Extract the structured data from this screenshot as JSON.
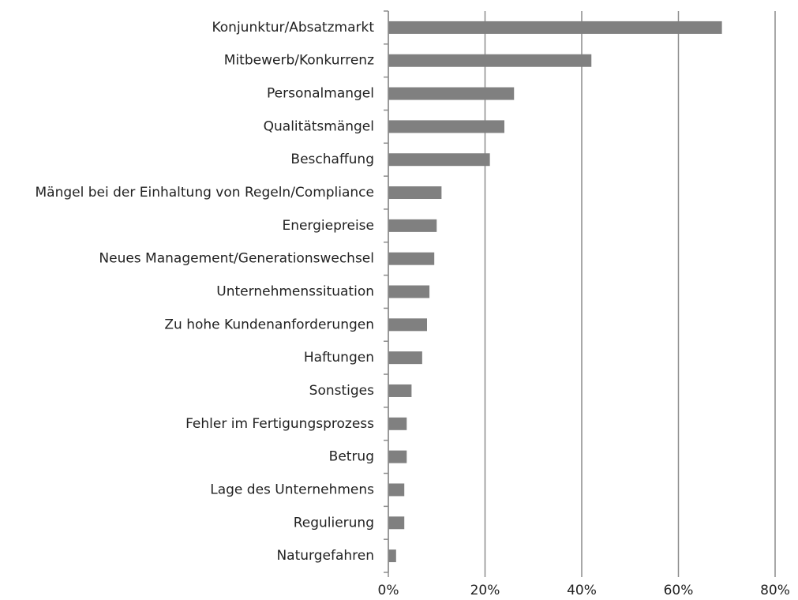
{
  "chart_data": {
    "type": "hbar",
    "categories": [
      "Konjunktur/Absatzmarkt",
      "Mitbewerb/Konkurrenz",
      "Personalmangel",
      "Qualitätsmängel",
      "Beschaffung",
      "Mängel bei der Einhaltung von Regeln/Compliance",
      "Energiepreise",
      "Neues Management/Generationswechsel",
      "Unternehmenssituation",
      "Zu hohe Kundenanforderungen",
      "Haftungen",
      "Sonstiges",
      "Fehler im Fertigungsprozess",
      "Betrug",
      "Lage des Unternehmens",
      "Regulierung",
      "Naturgefahren"
    ],
    "values": [
      69,
      42,
      26,
      24,
      21,
      11,
      10,
      9.5,
      8.5,
      8,
      7,
      4.8,
      3.8,
      3.8,
      3.3,
      3.3,
      1.6
    ],
    "color": "#808080",
    "xlim": [
      0,
      80
    ],
    "xticks": [
      {
        "value": 0,
        "label": "0%"
      },
      {
        "value": 20,
        "label": "20%"
      },
      {
        "value": 40,
        "label": "40%"
      },
      {
        "value": 60,
        "label": "60%"
      },
      {
        "value": 80,
        "label": "80%"
      }
    ],
    "grid": true
  }
}
